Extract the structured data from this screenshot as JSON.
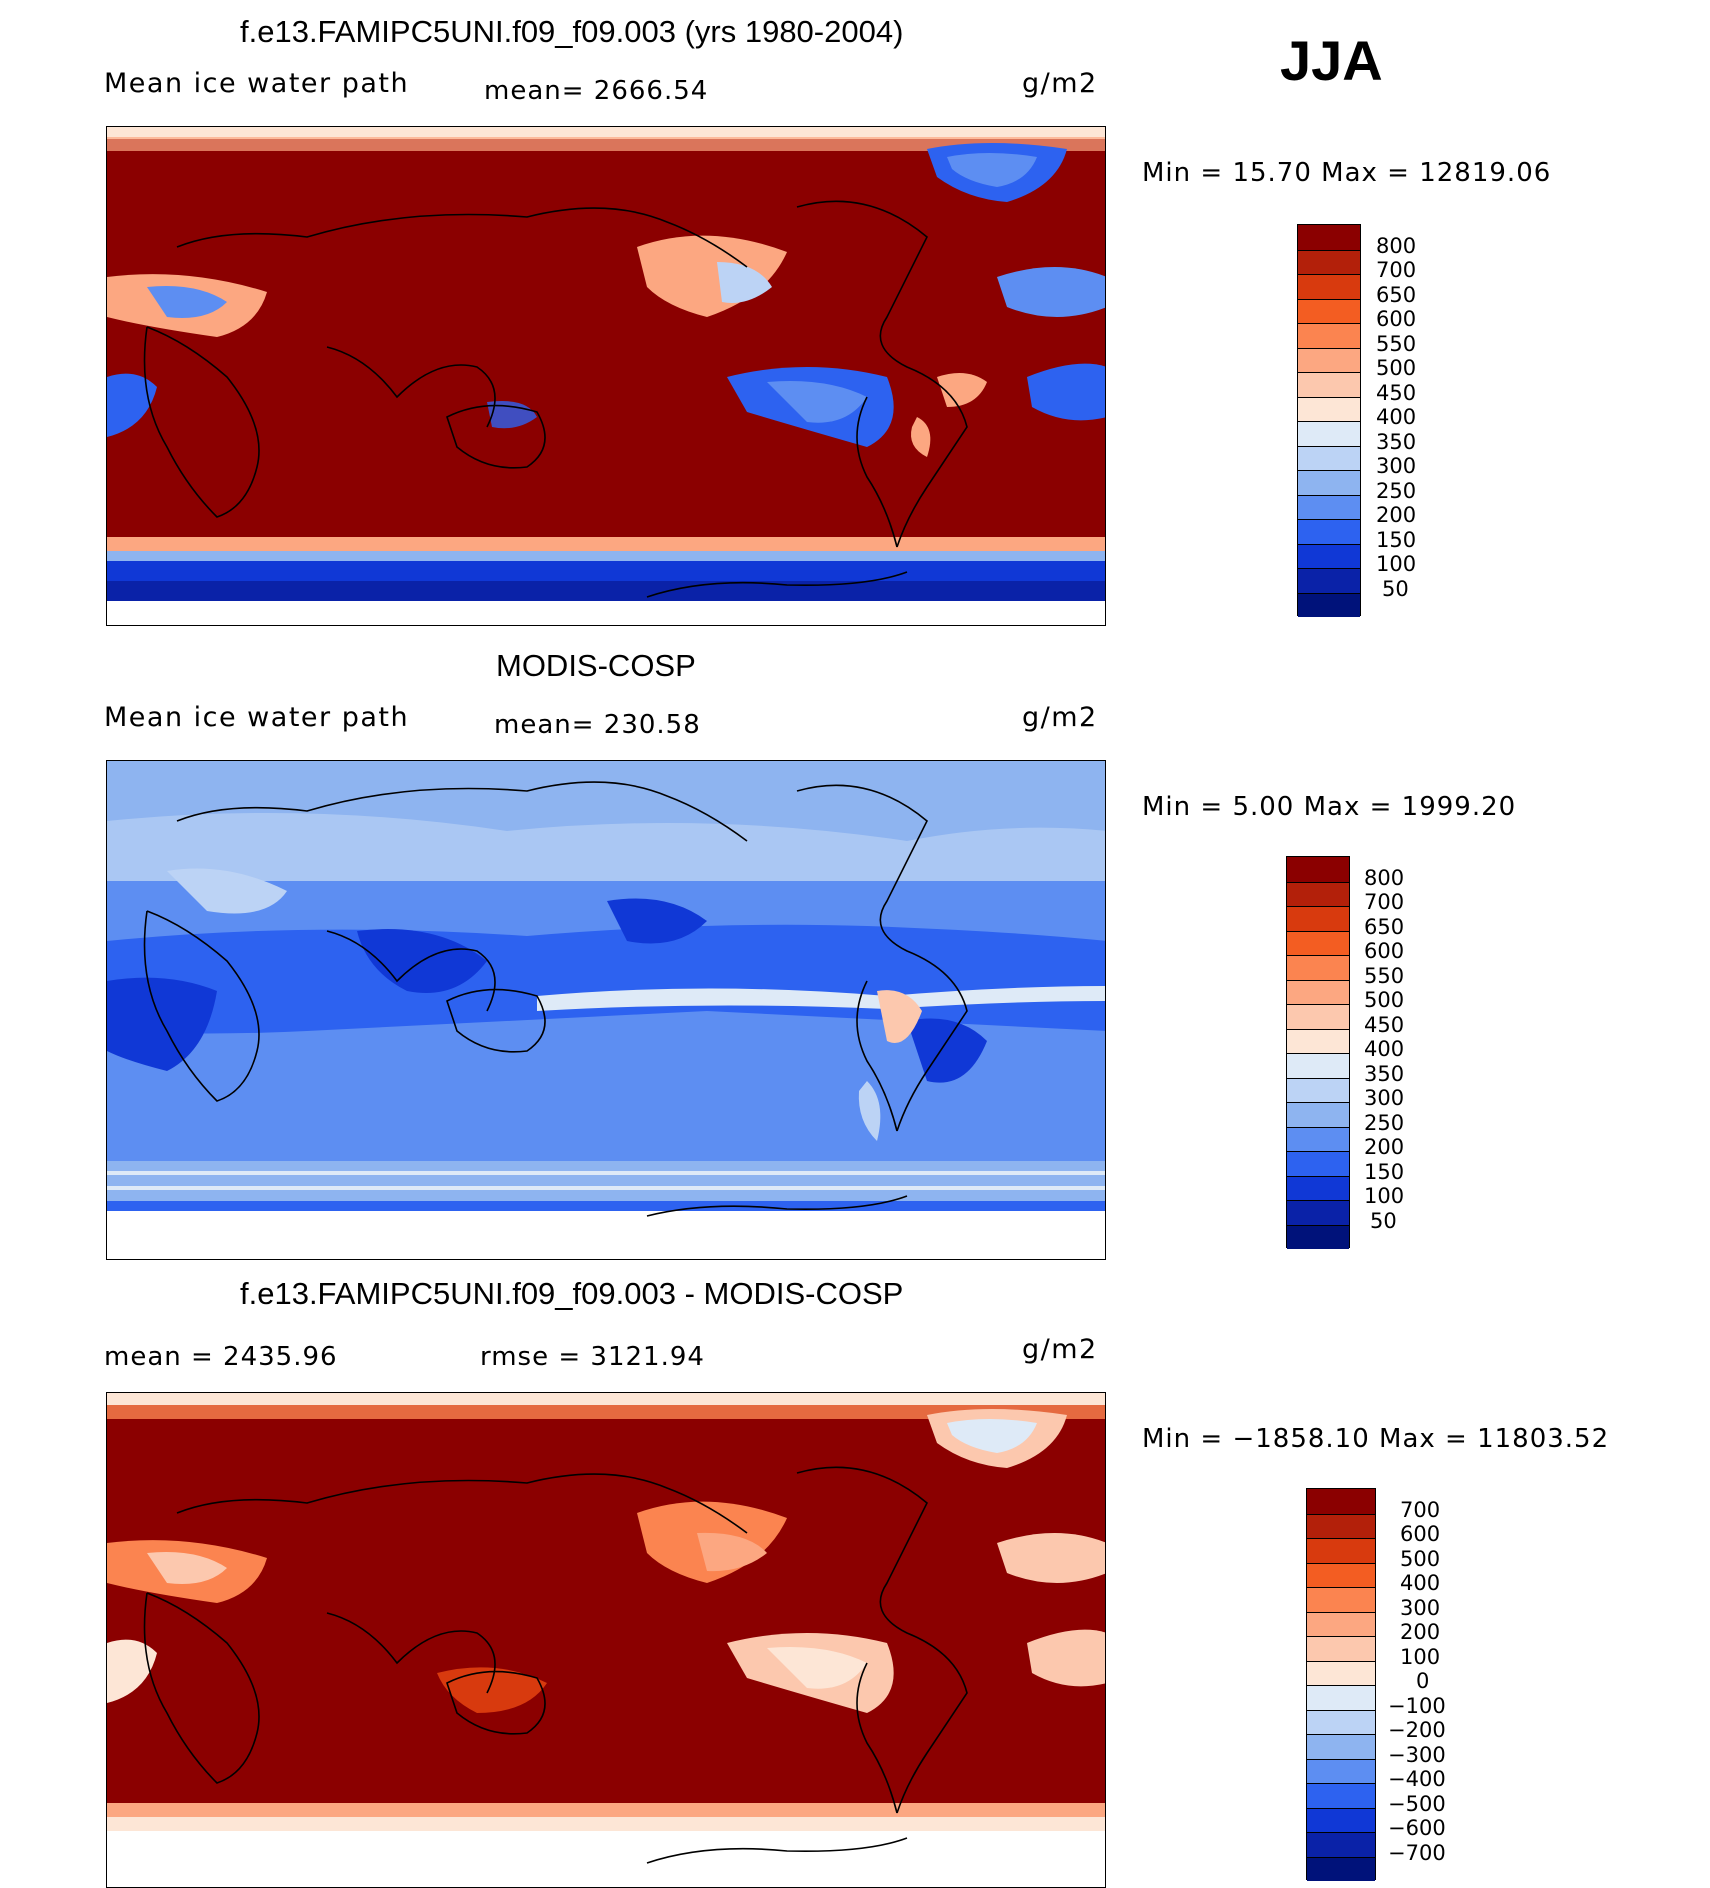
{
  "season": "JJA",
  "panels": [
    {
      "title": "f.e13.FAMIPC5UNI.f09_f09.003 (yrs 1980-2004)",
      "left_label": "Mean ice water path",
      "center_label": "mean=  2666.54",
      "units": "g/m2",
      "minmax": "Min =   15.70 Max  =  12819.06",
      "colorbar_labels": [
        "800",
        "700",
        "650",
        "600",
        "550",
        "500",
        "450",
        "400",
        "350",
        "300",
        "250",
        "200",
        "150",
        "100",
        "50"
      ]
    },
    {
      "title": "MODIS-COSP",
      "left_label": "Mean ice water path",
      "center_label": "mean=  230.58",
      "units": "g/m2",
      "minmax": "Min =    5.00 Max  =  1999.20",
      "colorbar_labels": [
        "800",
        "700",
        "650",
        "600",
        "550",
        "500",
        "450",
        "400",
        "350",
        "300",
        "250",
        "200",
        "150",
        "100",
        "50"
      ]
    },
    {
      "title": "f.e13.FAMIPC5UNI.f09_f09.003 - MODIS-COSP",
      "left_label": "mean  =  2435.96",
      "center_label": "rmse  =  3121.94",
      "units": "g/m2",
      "minmax": "Min  =  −1858.10 Max  =  11803.52",
      "colorbar_labels": [
        "700",
        "600",
        "500",
        "400",
        "300",
        "200",
        "100",
        "0",
        "−100",
        "−200",
        "−300",
        "−400",
        "−500",
        "−600",
        "−700"
      ]
    }
  ],
  "colors": {
    "abs_scale": [
      "#8b0000",
      "#b3200a",
      "#d83a0e",
      "#f35d22",
      "#fb8450",
      "#fca781",
      "#fcc8ae",
      "#fde6d6",
      "#deeaf7",
      "#bcd3f5",
      "#8eb4f0",
      "#5d8ef2",
      "#2d62f0",
      "#1038d6",
      "#0a22a8",
      "#00127a"
    ],
    "diff_scale": [
      "#8b0000",
      "#b3200a",
      "#d83a0e",
      "#f35d22",
      "#fb8450",
      "#fca781",
      "#fcc8ae",
      "#fde6d6",
      "#deeaf7",
      "#bcd3f5",
      "#8eb4f0",
      "#5d8ef2",
      "#2d62f0",
      "#1038d6",
      "#0a22a8",
      "#00127a"
    ],
    "model_background": "#8b0000",
    "obs_background": "#5d8ef2"
  }
}
